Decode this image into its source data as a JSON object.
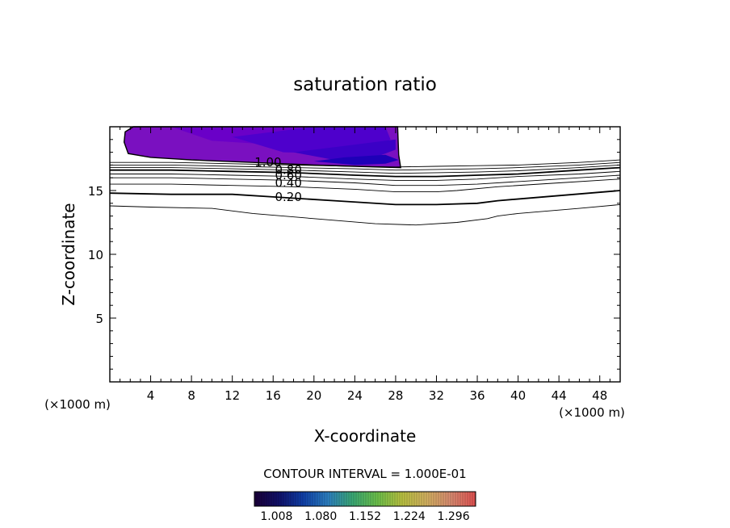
{
  "chart_data": {
    "type": "contour",
    "title": "saturation ratio",
    "xlabel": "X-coordinate",
    "ylabel": "Z-coordinate",
    "x_unit_left": "(×1000 m)",
    "x_unit_right": "(×1000 m)",
    "xlim": [
      0,
      50
    ],
    "ylim": [
      0,
      20
    ],
    "x_ticks": [
      4,
      8,
      12,
      16,
      20,
      24,
      28,
      32,
      36,
      40,
      44,
      48
    ],
    "y_ticks": [
      5,
      10,
      15
    ],
    "contour_interval_label": "CONTOUR INTERVAL = 1.000E-01",
    "contour_labels": [
      {
        "text": "1.00",
        "x": 15.5,
        "y": 17.2
      },
      {
        "text": "0.80",
        "x": 17.5,
        "y": 16.6
      },
      {
        "text": "0.60",
        "x": 17.5,
        "y": 16.2
      },
      {
        "text": "0.40",
        "x": 17.5,
        "y": 15.6
      },
      {
        "text": "0.20",
        "x": 17.5,
        "y": 14.5
      }
    ],
    "contour_lines": [
      {
        "level": 0.1,
        "bold": false,
        "points": [
          [
            0,
            13.8
          ],
          [
            4,
            13.7
          ],
          [
            10,
            13.6
          ],
          [
            14,
            13.2
          ],
          [
            20,
            12.8
          ],
          [
            26,
            12.4
          ],
          [
            30,
            12.3
          ],
          [
            34,
            12.5
          ],
          [
            37,
            12.8
          ],
          [
            38,
            13.0
          ],
          [
            40,
            13.2
          ],
          [
            46,
            13.6
          ],
          [
            50,
            13.9
          ]
        ]
      },
      {
        "level": 0.2,
        "bold": true,
        "points": [
          [
            0,
            14.8
          ],
          [
            6,
            14.7
          ],
          [
            12,
            14.7
          ],
          [
            16,
            14.5
          ],
          [
            22,
            14.2
          ],
          [
            28,
            13.9
          ],
          [
            32,
            13.9
          ],
          [
            36,
            14.0
          ],
          [
            38,
            14.2
          ],
          [
            44,
            14.6
          ],
          [
            50,
            15.0
          ]
        ]
      },
      {
        "level": 0.3,
        "bold": false,
        "points": [
          [
            0,
            15.5
          ],
          [
            6,
            15.5
          ],
          [
            12,
            15.4
          ],
          [
            18,
            15.3
          ],
          [
            24,
            15.1
          ],
          [
            28,
            14.9
          ],
          [
            32,
            14.9
          ],
          [
            34,
            15.0
          ],
          [
            38,
            15.3
          ],
          [
            44,
            15.6
          ],
          [
            50,
            15.9
          ]
        ]
      },
      {
        "level": 0.4,
        "bold": false,
        "points": [
          [
            0,
            16.0
          ],
          [
            6,
            16.0
          ],
          [
            12,
            15.9
          ],
          [
            18,
            15.8
          ],
          [
            24,
            15.6
          ],
          [
            28,
            15.4
          ],
          [
            32,
            15.4
          ],
          [
            36,
            15.5
          ],
          [
            40,
            15.7
          ],
          [
            46,
            16.0
          ],
          [
            50,
            16.2
          ]
        ]
      },
      {
        "level": 0.5,
        "bold": false,
        "points": [
          [
            0,
            16.3
          ],
          [
            6,
            16.3
          ],
          [
            12,
            16.2
          ],
          [
            18,
            16.1
          ],
          [
            24,
            15.9
          ],
          [
            28,
            15.8
          ],
          [
            32,
            15.8
          ],
          [
            36,
            15.9
          ],
          [
            40,
            16.1
          ],
          [
            46,
            16.3
          ],
          [
            50,
            16.5
          ]
        ]
      },
      {
        "level": 0.6,
        "bold": true,
        "points": [
          [
            0,
            16.6
          ],
          [
            6,
            16.6
          ],
          [
            12,
            16.5
          ],
          [
            18,
            16.4
          ],
          [
            24,
            16.2
          ],
          [
            28,
            16.1
          ],
          [
            32,
            16.1
          ],
          [
            36,
            16.2
          ],
          [
            40,
            16.3
          ],
          [
            46,
            16.6
          ],
          [
            50,
            16.8
          ]
        ]
      },
      {
        "level": 0.7,
        "bold": false,
        "points": [
          [
            0,
            16.8
          ],
          [
            6,
            16.8
          ],
          [
            12,
            16.7
          ],
          [
            18,
            16.6
          ],
          [
            24,
            16.45
          ],
          [
            28,
            16.35
          ],
          [
            32,
            16.4
          ],
          [
            36,
            16.45
          ],
          [
            40,
            16.55
          ],
          [
            46,
            16.8
          ],
          [
            50,
            17.0
          ]
        ]
      },
      {
        "level": 0.8,
        "bold": false,
        "points": [
          [
            0,
            17.0
          ],
          [
            6,
            17.0
          ],
          [
            12,
            16.9
          ],
          [
            18,
            16.8
          ],
          [
            24,
            16.7
          ],
          [
            28,
            16.6
          ],
          [
            32,
            16.65
          ],
          [
            36,
            16.7
          ],
          [
            40,
            16.8
          ],
          [
            46,
            17.0
          ],
          [
            50,
            17.2
          ]
        ]
      },
      {
        "level": 0.9,
        "bold": false,
        "points": [
          [
            0,
            17.2
          ],
          [
            6,
            17.2
          ],
          [
            12,
            17.1
          ],
          [
            18,
            17.0
          ],
          [
            24,
            16.9
          ],
          [
            28,
            16.85
          ],
          [
            32,
            16.9
          ],
          [
            36,
            16.95
          ],
          [
            40,
            17.0
          ],
          [
            46,
            17.2
          ],
          [
            50,
            17.4
          ]
        ]
      }
    ],
    "filled_region": {
      "min": 1.0,
      "outline": [
        [
          2.3,
          20
        ],
        [
          1.5,
          19.6
        ],
        [
          1.4,
          18.8
        ],
        [
          1.8,
          17.9
        ],
        [
          4,
          17.6
        ],
        [
          8,
          17.4
        ],
        [
          14,
          17.2
        ],
        [
          20,
          17.0
        ],
        [
          24,
          16.9
        ],
        [
          26,
          16.85
        ],
        [
          28.5,
          16.8
        ],
        [
          28.3,
          17.8
        ],
        [
          28.2,
          20
        ]
      ],
      "inner_bands": [
        {
          "color": "#6a00c8",
          "points": [
            [
              6,
              20
            ],
            [
              10,
              18.9
            ],
            [
              16,
              18.6
            ],
            [
              22,
              18.8
            ],
            [
              26,
              19.3
            ],
            [
              27,
              20
            ]
          ]
        },
        {
          "color": "#4e00cc",
          "points": [
            [
              12,
              19.2
            ],
            [
              17,
              18.0
            ],
            [
              22,
              17.9
            ],
            [
              26,
              18.3
            ],
            [
              27.5,
              19.0
            ],
            [
              27,
              20
            ],
            [
              20,
              20
            ]
          ]
        },
        {
          "color": "#3b00c6",
          "points": [
            [
              18,
              18.0
            ],
            [
              22,
              17.4
            ],
            [
              26,
              17.6
            ],
            [
              28,
              18.2
            ],
            [
              28,
              19.0
            ],
            [
              24,
              18.6
            ]
          ]
        },
        {
          "color": "#1e00b8",
          "points": [
            [
              20,
              17.3
            ],
            [
              24,
              17.0
            ],
            [
              27,
              17.1
            ],
            [
              28.3,
              17.4
            ],
            [
              27,
              17.8
            ],
            [
              23,
              17.6
            ]
          ]
        }
      ]
    },
    "colorbar": {
      "tick_labels": [
        "1.008",
        "1.080",
        "1.152",
        "1.224",
        "1.296"
      ],
      "range": [
        0.972,
        1.332
      ],
      "stops": [
        "#1a0038",
        "#10106a",
        "#1040a8",
        "#2c7fc0",
        "#3aa874",
        "#6cc04a",
        "#b8c040",
        "#d2b060",
        "#d88a70",
        "#e05050"
      ]
    }
  }
}
